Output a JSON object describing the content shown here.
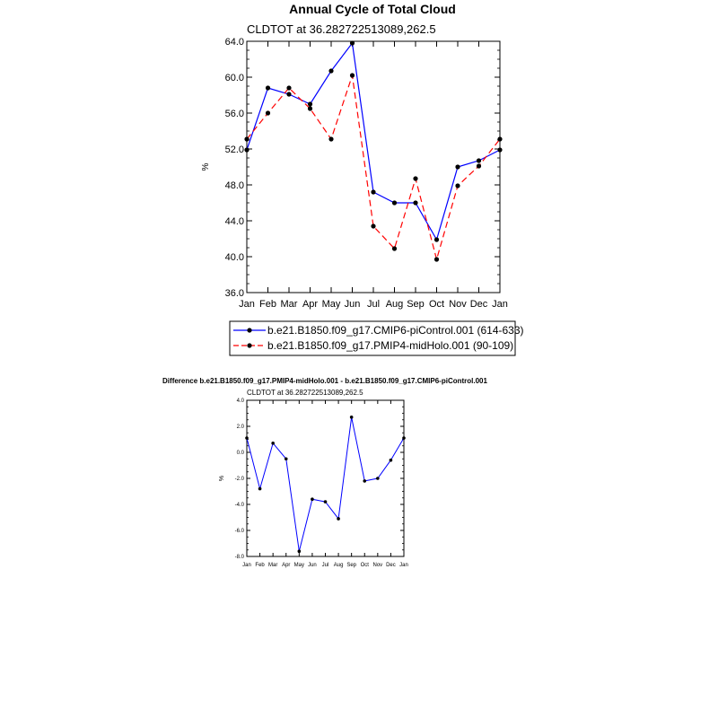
{
  "chart_data": [
    {
      "type": "line",
      "title": "Annual Cycle of Total Cloud",
      "subtitle": "CLDTOT at 36.282722513089,262.5",
      "xlabel": "",
      "ylabel": "%",
      "categories": [
        "Jan",
        "Feb",
        "Mar",
        "Apr",
        "May",
        "Jun",
        "Jul",
        "Aug",
        "Sep",
        "Oct",
        "Nov",
        "Dec",
        "Jan"
      ],
      "ylim": [
        36,
        64
      ],
      "yticks": [
        "36.0",
        "40.0",
        "44.0",
        "48.0",
        "52.0",
        "56.0",
        "60.0",
        "64.0"
      ],
      "ytick_values": [
        36,
        40,
        44,
        48,
        52,
        56,
        60,
        64
      ],
      "legend_position": "bottom",
      "series": [
        {
          "name": "b.e21.B1850.f09_g17.CMIP6-piControl.001 (614-633)",
          "color": "#0000ff",
          "dash": "solid",
          "values": [
            51.9,
            58.8,
            58.1,
            57.0,
            60.7,
            63.8,
            47.2,
            46.0,
            46.0,
            41.9,
            50.0,
            50.7,
            51.9
          ]
        },
        {
          "name": "b.e21.B1850.f09_g17.PMIP4-midHolo.001 (90-109)",
          "color": "#ff0000",
          "dash": "dashed",
          "values": [
            53.1,
            56.0,
            58.8,
            56.5,
            53.1,
            60.2,
            43.4,
            40.9,
            48.7,
            39.7,
            47.9,
            50.1,
            53.1
          ]
        }
      ]
    },
    {
      "type": "line",
      "title": "Difference b.e21.B1850.f09_g17.PMIP4-midHolo.001 - b.e21.B1850.f09_g17.CMIP6-piControl.001",
      "subtitle": "CLDTOT at 36.282722513089,262.5",
      "xlabel": "",
      "ylabel": "%",
      "categories": [
        "Jan",
        "Feb",
        "Mar",
        "Apr",
        "May",
        "Jun",
        "Jul",
        "Aug",
        "Sep",
        "Oct",
        "Nov",
        "Dec",
        "Jan"
      ],
      "ylim": [
        -8,
        4
      ],
      "yticks": [
        "-8.0",
        "-6.0",
        "-4.0",
        "-2.0",
        "0.0",
        "2.0",
        "4.0"
      ],
      "ytick_values": [
        -8,
        -6,
        -4,
        -2,
        0,
        2,
        4
      ],
      "series": [
        {
          "name": "Difference",
          "color": "#0000ff",
          "dash": "solid",
          "values": [
            1.1,
            -2.8,
            0.7,
            -0.5,
            -7.6,
            -3.6,
            -3.8,
            -5.1,
            2.7,
            -2.2,
            -2.0,
            -0.6,
            1.1
          ]
        }
      ]
    }
  ]
}
